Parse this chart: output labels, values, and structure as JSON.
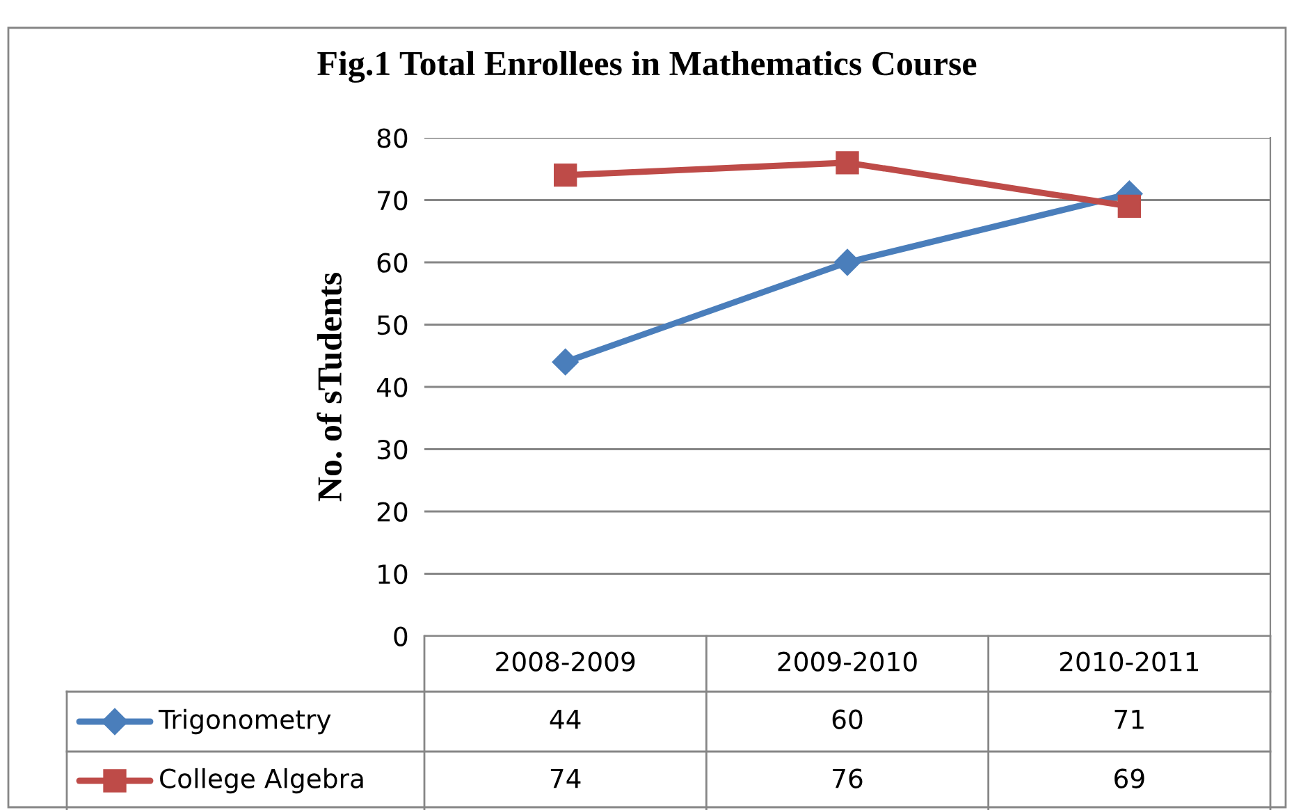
{
  "chart_data": {
    "type": "line",
    "title": "Fig.1 Total Enrollees in Mathematics Course",
    "ylabel": "No. of sTudents",
    "categories": [
      "2008-2009",
      "2009-2010",
      "2010-2011"
    ],
    "series": [
      {
        "name": "Trigonometry",
        "color": "#4a7ebb",
        "values": [
          44,
          60,
          71
        ],
        "marker": "diamond"
      },
      {
        "name": "College Algebra",
        "color": "#be4b48",
        "values": [
          74,
          76,
          69
        ],
        "marker": "square"
      }
    ],
    "ylim": [
      0,
      80
    ],
    "yticks": [
      0,
      10,
      20,
      30,
      40,
      50,
      60,
      70,
      80
    ],
    "grid": "y",
    "legend": "bottom",
    "data_labels": true,
    "line_style": "solid"
  }
}
